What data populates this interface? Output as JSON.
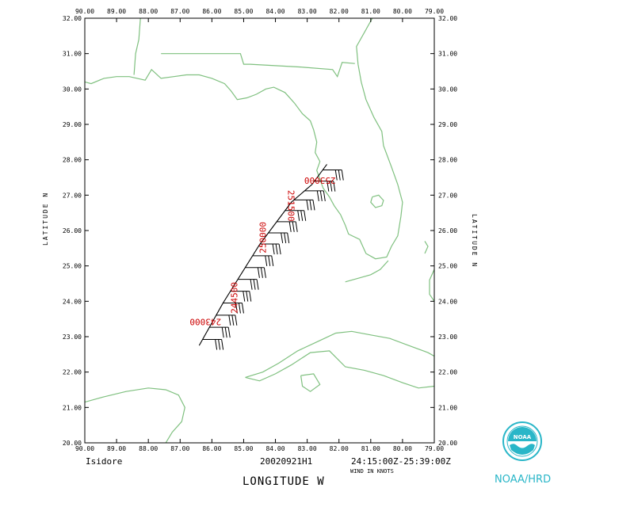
{
  "map": {
    "lon_ticks": [
      "90.00",
      "89.00",
      "88.00",
      "87.00",
      "86.00",
      "85.00",
      "84.00",
      "83.00",
      "82.00",
      "81.00",
      "80.00",
      "79.00"
    ],
    "lat_ticks": [
      "20.00",
      "21.00",
      "22.00",
      "23.00",
      "24.00",
      "25.00",
      "26.00",
      "27.00",
      "28.00",
      "29.00",
      "30.00",
      "31.00",
      "32.00"
    ],
    "lon_range": [
      -90,
      -79
    ],
    "lat_range": [
      20,
      32
    ],
    "y_axis_label_left": "LATITUDE  N",
    "y_axis_label_right": "LATITUDE  N",
    "x_axis_label": "LONGITUDE  W",
    "coastline_color": "#7fc07f",
    "track_color": "#000000",
    "time_label_color": "#cc0000"
  },
  "track": {
    "points": [
      {
        "lon": -86.4,
        "lat": 22.75
      },
      {
        "lon": -85.65,
        "lat": 23.95
      },
      {
        "lon": -84.5,
        "lat": 25.6
      },
      {
        "lon": -83.5,
        "lat": 26.8
      },
      {
        "lon": -82.85,
        "lat": 27.3
      },
      {
        "lon": -82.38,
        "lat": 27.87
      }
    ],
    "time_labels": [
      {
        "text": "243000",
        "lon": -86.2,
        "lat": 23.5,
        "rotate": 180
      },
      {
        "text": "244500",
        "lon": -85.2,
        "lat": 24.1,
        "rotate": -90
      },
      {
        "text": "250000",
        "lon": -84.3,
        "lat": 25.8,
        "rotate": -90
      },
      {
        "text": "251500",
        "lon": -83.6,
        "lat": 26.7,
        "rotate": 90
      },
      {
        "text": "253000",
        "lon": -82.6,
        "lat": 27.5,
        "rotate": 180
      }
    ]
  },
  "footer": {
    "storm_name": "Isidore",
    "flight_id": "20020921H1",
    "time_range": "24:15:00Z-25:39:00Z",
    "wind_units": "WIND IN KNOTS",
    "agency": "NOAA/HRD",
    "logo_text": "NOAA"
  }
}
